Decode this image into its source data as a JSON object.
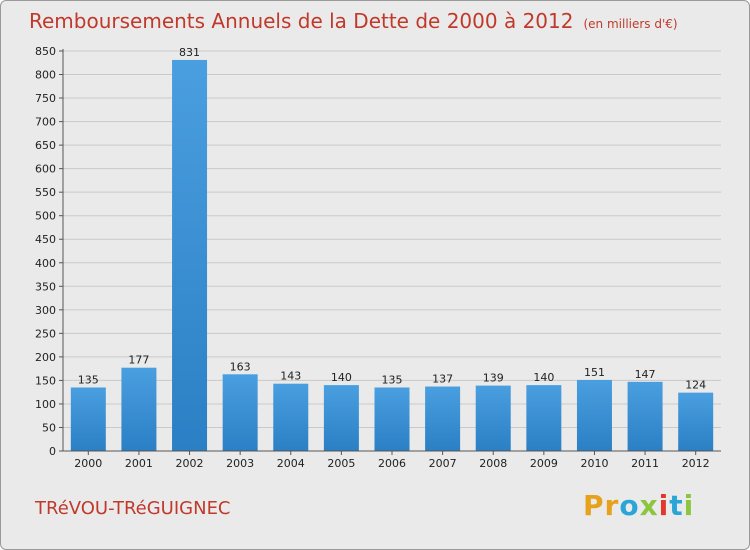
{
  "chart_data": {
    "type": "bar",
    "title": "Remboursements Annuels de la Dette de 2000 à 2012",
    "subtitle": "(en milliers d'€)",
    "categories": [
      "2000",
      "2001",
      "2002",
      "2003",
      "2004",
      "2005",
      "2006",
      "2007",
      "2008",
      "2009",
      "2010",
      "2011",
      "2012"
    ],
    "values": [
      135,
      177,
      831,
      163,
      143,
      140,
      135,
      137,
      139,
      140,
      151,
      147,
      124
    ],
    "ylim": [
      0,
      850
    ],
    "yticks": [
      0,
      50,
      100,
      150,
      200,
      250,
      300,
      350,
      400,
      450,
      500,
      550,
      600,
      650,
      700,
      750,
      800,
      850
    ],
    "grid": true,
    "bar_color": "#4a9fe0",
    "bar_color_dark": "#2b7fc4"
  },
  "footer": {
    "commune": "TRéVOU-TRéGUIGNEC",
    "logo": [
      "P",
      "r",
      "o",
      "x",
      "i",
      "t",
      "i"
    ],
    "logo_colors": [
      "#e6a21c",
      "#e6a21c",
      "#2aa5d8",
      "#8cc63f",
      "#e0392b",
      "#2aa5d8",
      "#8cc63f"
    ]
  }
}
